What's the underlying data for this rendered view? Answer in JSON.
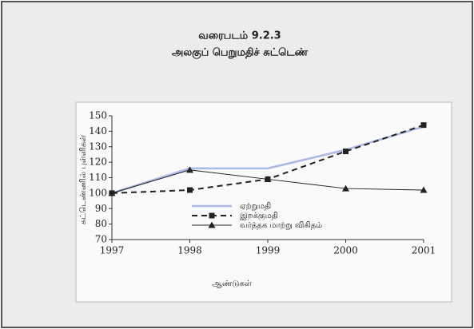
{
  "chart_data": {
    "type": "line",
    "title": "வரைபடம் 9.2.3",
    "subtitle": "அலகுப் பெறுமதிச் சுட்டெண்",
    "y_label": "சுட்டெண்ணில் புள்ளிகள்",
    "x_label": "ஆண்டுகள்",
    "x": [
      1997,
      1998,
      1999,
      2000,
      2001
    ],
    "series": [
      {
        "name": "ஏற்றுமதி",
        "color": "#a9b8e6",
        "values": [
          100,
          116,
          116,
          128,
          143
        ]
      },
      {
        "name": "இறக்குமதி",
        "color": "#222222",
        "values": [
          100,
          102,
          109,
          127,
          144
        ]
      },
      {
        "name": "வர்த்தக மாற்று விகிதம்",
        "color": "#222222",
        "values": [
          100,
          115,
          109,
          103,
          102
        ]
      }
    ],
    "xlim": [
      1997,
      2001
    ],
    "xticks": [
      1997,
      1998,
      1999,
      2000,
      2001
    ],
    "ylim": [
      70,
      150
    ],
    "yticks": [
      70,
      80,
      90,
      100,
      110,
      120,
      130,
      140,
      150
    ],
    "grid": false
  }
}
